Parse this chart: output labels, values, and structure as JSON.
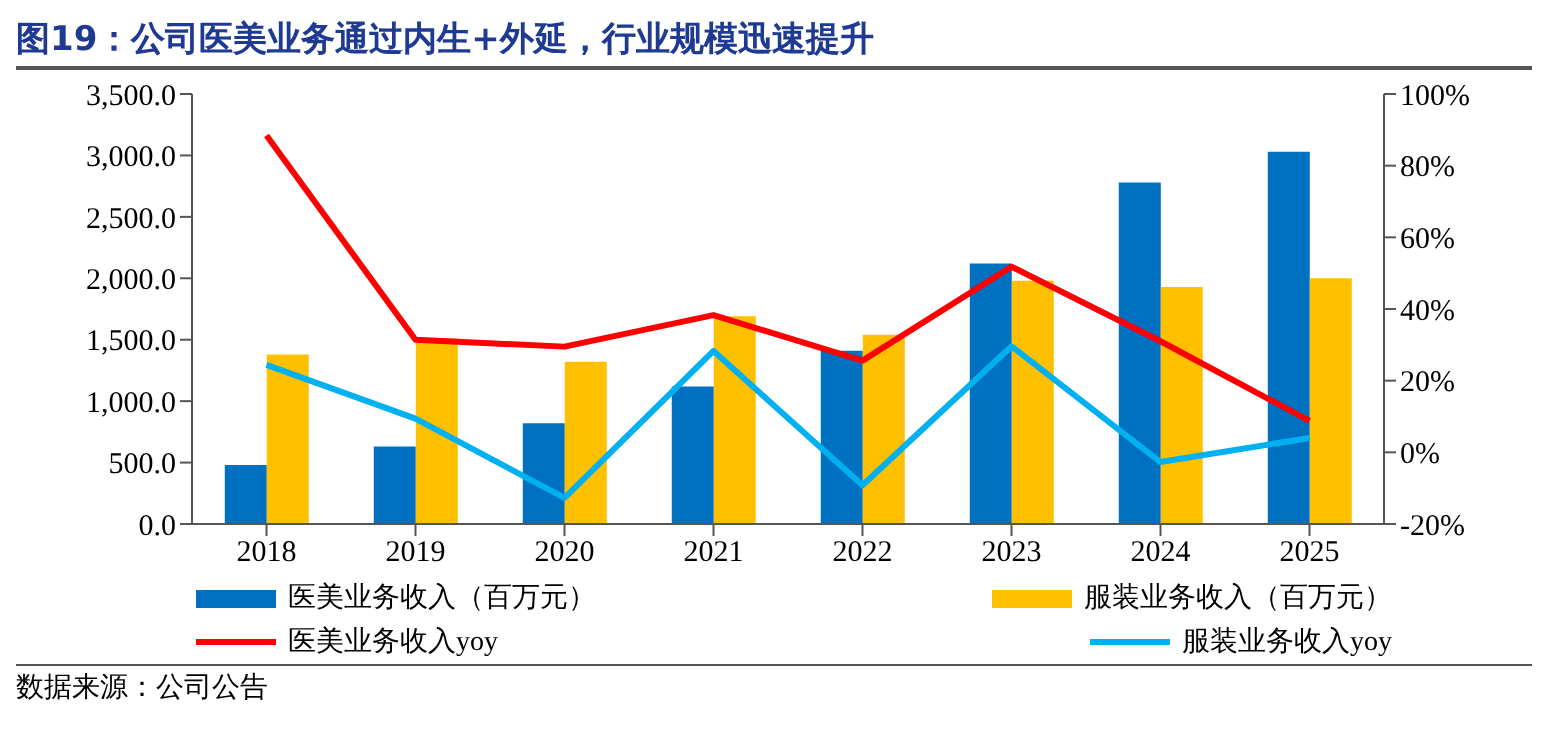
{
  "chart_data": {
    "type": "bar",
    "title": "图19：公司医美业务通过内生+外延，行业规模迅速提升",
    "categories": [
      "2018",
      "2019",
      "2020",
      "2021",
      "2022",
      "2023",
      "2024",
      "2025"
    ],
    "series": [
      {
        "name": "医美业务收入（百万元）",
        "color": "#0070c0",
        "values": [
          480,
          630,
          820,
          1120,
          1410,
          2120,
          2780,
          3030
        ]
      },
      {
        "name": "服装业务收入（百万元）",
        "color": "#ffc000",
        "values": [
          1380,
          1510,
          1320,
          1690,
          1540,
          1980,
          1930,
          2000
        ]
      },
      {
        "name": "医美业务收入yoy",
        "type": "line",
        "axis": "y2",
        "color": "#ff0000",
        "values": [
          88.4,
          31.4,
          29.5,
          38.3,
          25.6,
          51.8,
          31,
          8.8
        ]
      },
      {
        "name": "服装业务收入yoy",
        "type": "line",
        "axis": "y2",
        "color": "#00b0f0",
        "values": [
          24.4,
          9.4,
          -12.7,
          28.3,
          -9.2,
          29.6,
          -2.7,
          4.0
        ]
      }
    ],
    "ylim": [
      0,
      3500
    ],
    "yticks": [
      {
        "value": 0,
        "label": "0.0"
      },
      {
        "value": 500,
        "label": "500.0"
      },
      {
        "value": 1000,
        "label": "1,000.0"
      },
      {
        "value": 1500,
        "label": "1,500.0"
      },
      {
        "value": 2000,
        "label": "2,000.0"
      },
      {
        "value": 2500,
        "label": "2,500.0"
      },
      {
        "value": 3000,
        "label": "3,000.0"
      },
      {
        "value": 3500,
        "label": "3,500.0"
      }
    ],
    "y2lim": [
      -20,
      100
    ],
    "y2ticks": [
      {
        "value": -20,
        "label": "-20%"
      },
      {
        "value": 0,
        "label": "0%"
      },
      {
        "value": 20,
        "label": "20%"
      },
      {
        "value": 40,
        "label": "40%"
      },
      {
        "value": 60,
        "label": "60%"
      },
      {
        "value": 80,
        "label": "80%"
      },
      {
        "value": 100,
        "label": "100%"
      }
    ],
    "legend": "bottom",
    "marker": "none",
    "annotations": [
      "数据来源：公司公告"
    ]
  }
}
